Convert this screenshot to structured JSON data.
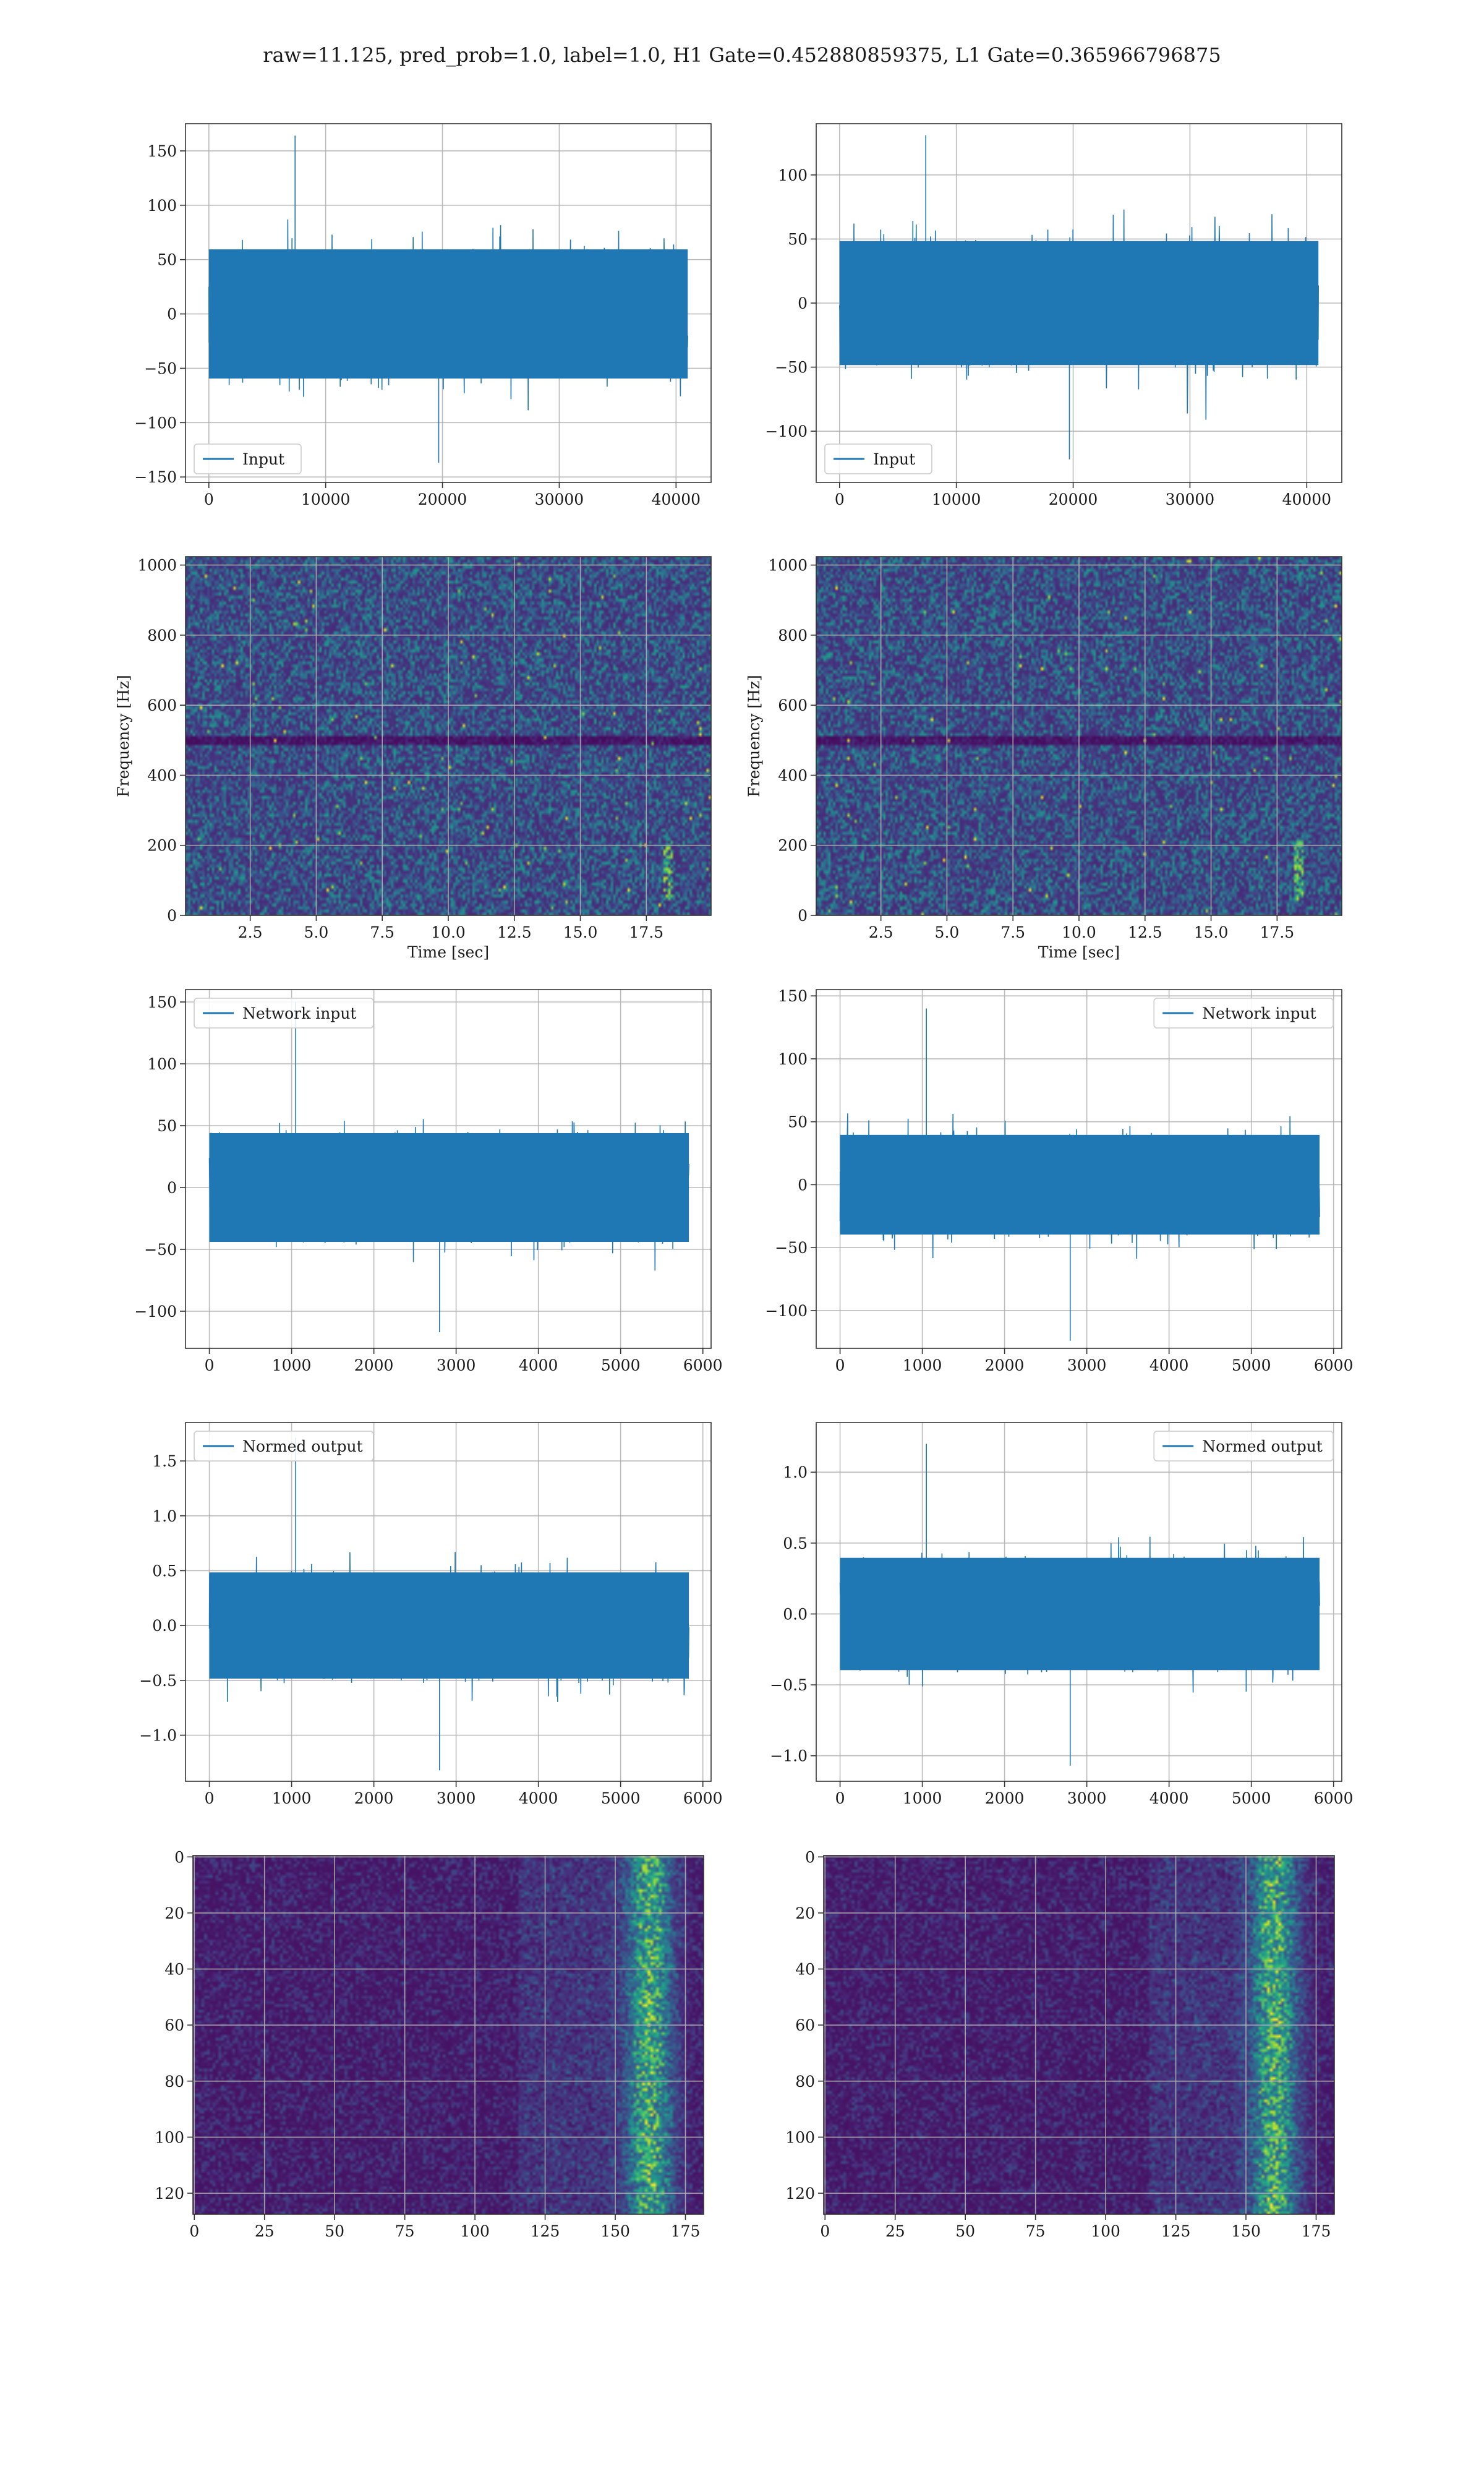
{
  "figure": {
    "suptitle": "raw=11.125, pred_prob=1.0, label=1.0, H1 Gate=0.452880859375, L1 Gate=0.365966796875",
    "series_color": "#1f77b4",
    "grid_color": "#b0b0b0"
  },
  "chart_data": [
    {
      "type": "line",
      "row": 1,
      "col": 1,
      "legend": "Input",
      "legend_position": "lower left",
      "xlim": [
        -2000,
        43000
      ],
      "ylim": [
        -155,
        175
      ],
      "xticks": [
        0,
        10000,
        20000,
        30000,
        40000
      ],
      "yticks": [
        -150,
        -100,
        -50,
        0,
        50,
        100,
        150
      ],
      "x_range": [
        0,
        41000
      ],
      "noise_sigma": 27,
      "y_max": 164,
      "y_min": -137,
      "grid": true
    },
    {
      "type": "line",
      "row": 1,
      "col": 2,
      "legend": "Input",
      "legend_position": "lower left",
      "xlim": [
        -2000,
        43000
      ],
      "ylim": [
        -140,
        140
      ],
      "xticks": [
        0,
        10000,
        20000,
        30000,
        40000
      ],
      "yticks": [
        -100,
        -50,
        0,
        50,
        100
      ],
      "x_range": [
        0,
        41000
      ],
      "noise_sigma": 22,
      "y_max": 131,
      "y_min": -122,
      "grid": true
    },
    {
      "type": "heatmap",
      "row": 2,
      "col": 1,
      "xlabel": "Time [sec]",
      "ylabel": "Frequency [Hz]",
      "xlim": [
        0.05,
        19.95
      ],
      "ylim": [
        0,
        1024
      ],
      "xticks": [
        2.5,
        5.0,
        7.5,
        10.0,
        12.5,
        15.0,
        17.5
      ],
      "yticks": [
        0,
        200,
        400,
        600,
        800,
        1000
      ],
      "colormap": "viridis",
      "grid": true,
      "notable_features": [
        "dark horizontal band near 500 Hz",
        "bright track near t=18 s between 50 and 220 Hz"
      ]
    },
    {
      "type": "heatmap",
      "row": 2,
      "col": 2,
      "xlabel": "Time [sec]",
      "ylabel": "Frequency [Hz]",
      "xlim": [
        0.05,
        19.95
      ],
      "ylim": [
        0,
        1024
      ],
      "xticks": [
        2.5,
        5.0,
        7.5,
        10.0,
        12.5,
        15.0,
        17.5
      ],
      "yticks": [
        0,
        200,
        400,
        600,
        800,
        1000
      ],
      "colormap": "viridis",
      "grid": true,
      "notable_features": [
        "dark horizontal band near 500 Hz",
        "bright track near t=18 s between 50 and 220 Hz"
      ]
    },
    {
      "type": "line",
      "row": 3,
      "col": 1,
      "legend": "Network input",
      "legend_position": "upper left",
      "xlim": [
        -290,
        6100
      ],
      "ylim": [
        -130,
        160
      ],
      "xticks": [
        0,
        1000,
        2000,
        3000,
        4000,
        5000,
        6000
      ],
      "yticks": [
        -100,
        -50,
        0,
        50,
        100,
        150
      ],
      "x_range": [
        0,
        5830
      ],
      "noise_sigma": 20,
      "y_max": 150,
      "y_min": -117,
      "grid": true
    },
    {
      "type": "line",
      "row": 3,
      "col": 2,
      "legend": "Network input",
      "legend_position": "upper right",
      "xlim": [
        -290,
        6100
      ],
      "ylim": [
        -130,
        155
      ],
      "xticks": [
        0,
        1000,
        2000,
        3000,
        4000,
        5000,
        6000
      ],
      "yticks": [
        -100,
        -50,
        0,
        50,
        100,
        150
      ],
      "x_range": [
        0,
        5830
      ],
      "noise_sigma": 18,
      "y_max": 140,
      "y_min": -124,
      "grid": true
    },
    {
      "type": "line",
      "row": 4,
      "col": 1,
      "legend": "Normed output",
      "legend_position": "upper left",
      "xlim": [
        -290,
        6100
      ],
      "ylim": [
        -1.42,
        1.85
      ],
      "xticks": [
        0,
        1000,
        2000,
        3000,
        4000,
        5000,
        6000
      ],
      "yticks": [
        -1.0,
        -0.5,
        0.0,
        0.5,
        1.0,
        1.5
      ],
      "x_range": [
        0,
        5830
      ],
      "noise_sigma": 0.22,
      "y_max": 1.71,
      "y_min": -1.32,
      "grid": true
    },
    {
      "type": "line",
      "row": 4,
      "col": 2,
      "legend": "Normed output",
      "legend_position": "upper right",
      "xlim": [
        -290,
        6100
      ],
      "ylim": [
        -1.18,
        1.35
      ],
      "xticks": [
        0,
        1000,
        2000,
        3000,
        4000,
        5000,
        6000
      ],
      "yticks": [
        -1.0,
        -0.5,
        0.0,
        0.5,
        1.0
      ],
      "x_range": [
        0,
        5830
      ],
      "noise_sigma": 0.18,
      "y_max": 1.2,
      "y_min": -1.07,
      "grid": true
    },
    {
      "type": "heatmap",
      "row": 5,
      "col": 1,
      "xlim": [
        -0.5,
        181.5
      ],
      "ylim": [
        127.5,
        -0.5
      ],
      "xticks": [
        0,
        25,
        50,
        75,
        100,
        125,
        150,
        175
      ],
      "yticks": [
        0,
        20,
        40,
        60,
        80,
        100,
        120
      ],
      "colormap": "viridis",
      "grid": true,
      "notable_features": [
        "bright columns between x=150 and x=175"
      ]
    },
    {
      "type": "heatmap",
      "row": 5,
      "col": 2,
      "xlim": [
        -0.5,
        181.5
      ],
      "ylim": [
        127.5,
        -0.5
      ],
      "xticks": [
        0,
        25,
        50,
        75,
        100,
        125,
        150,
        175
      ],
      "yticks": [
        0,
        20,
        40,
        60,
        80,
        100,
        120
      ],
      "colormap": "viridis",
      "grid": true,
      "notable_features": [
        "bright columns between x=145 and x=175"
      ]
    }
  ]
}
